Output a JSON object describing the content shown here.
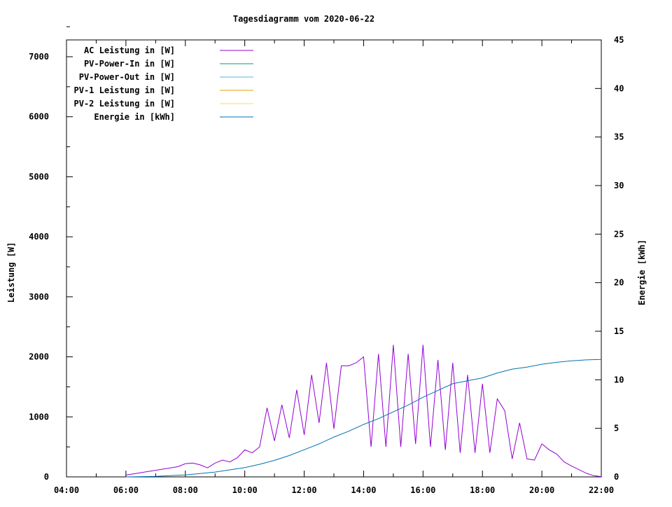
{
  "chart_data": {
    "type": "line",
    "title": "Tagesdiagramm vom 2020-06-22",
    "xlabel": "",
    "ylabel": "Leistung [W]",
    "y2label": "Energie [kWh]",
    "xlim": [
      "04:00",
      "22:00"
    ],
    "xticks": [
      "04:00",
      "06:00",
      "08:00",
      "10:00",
      "12:00",
      "14:00",
      "16:00",
      "18:00",
      "20:00",
      "22:00"
    ],
    "ylim": [
      0,
      7280
    ],
    "yticks": [
      0,
      1000,
      2000,
      3000,
      4000,
      5000,
      6000,
      7000
    ],
    "y2lim": [
      0,
      45
    ],
    "y2ticks": [
      0,
      5,
      10,
      15,
      20,
      25,
      30,
      35,
      40,
      45
    ],
    "grid": false,
    "legend_placement": "top-left",
    "series": [
      {
        "name": "AC Leistung in [W]",
        "color": "#9400d3",
        "axis": "y",
        "x": [
          "06:00",
          "06:15",
          "06:30",
          "06:45",
          "07:00",
          "07:15",
          "07:30",
          "07:45",
          "08:00",
          "08:15",
          "08:30",
          "08:45",
          "09:00",
          "09:15",
          "09:30",
          "09:45",
          "10:00",
          "10:15",
          "10:30",
          "10:45",
          "11:00",
          "11:15",
          "11:30",
          "11:45",
          "12:00",
          "12:15",
          "12:30",
          "12:45",
          "13:00",
          "13:15",
          "13:30",
          "13:45",
          "14:00",
          "14:15",
          "14:30",
          "14:45",
          "15:00",
          "15:15",
          "15:30",
          "15:45",
          "16:00",
          "16:15",
          "16:30",
          "16:45",
          "17:00",
          "17:15",
          "17:30",
          "17:45",
          "18:00",
          "18:15",
          "18:30",
          "18:45",
          "19:00",
          "19:15",
          "19:30",
          "19:45",
          "20:00",
          "20:15",
          "20:30",
          "20:45",
          "21:00",
          "21:15",
          "21:30",
          "21:45",
          "22:00"
        ],
        "values": [
          30,
          50,
          70,
          90,
          110,
          130,
          150,
          170,
          220,
          230,
          200,
          150,
          230,
          280,
          250,
          320,
          450,
          400,
          500,
          1150,
          600,
          1200,
          650,
          1450,
          700,
          1700,
          900,
          1900,
          800,
          1850,
          1850,
          1900,
          2000,
          500,
          2050,
          500,
          2200,
          500,
          2050,
          550,
          2200,
          500,
          1950,
          450,
          1900,
          400,
          1700,
          400,
          1550,
          400,
          1300,
          1100,
          300,
          900,
          300,
          280,
          550,
          450,
          380,
          250,
          180,
          120,
          60,
          20,
          5
        ]
      },
      {
        "name": "PV-Power-In in [W]",
        "color": "#009e73",
        "axis": "y",
        "x": [],
        "values": []
      },
      {
        "name": "PV-Power-Out in [W]",
        "color": "#56b4e9",
        "axis": "y",
        "x": [],
        "values": []
      },
      {
        "name": "PV-1 Leistung in [W]",
        "color": "#e69f00",
        "axis": "y",
        "x": [],
        "values": []
      },
      {
        "name": "PV-2 Leistung in [W]",
        "color": "#f0e442",
        "axis": "y",
        "x": [],
        "values": []
      },
      {
        "name": "Energie in [kWh]",
        "color": "#0072b2",
        "axis": "y2",
        "x": [
          "06:00",
          "07:00",
          "08:00",
          "09:00",
          "10:00",
          "10:30",
          "11:00",
          "11:30",
          "12:00",
          "12:30",
          "13:00",
          "13:30",
          "14:00",
          "14:30",
          "15:00",
          "15:30",
          "16:00",
          "16:30",
          "17:00",
          "17:30",
          "18:00",
          "18:30",
          "19:00",
          "19:30",
          "20:00",
          "20:30",
          "21:00",
          "21:30",
          "22:00"
        ],
        "values": [
          0,
          0.05,
          0.2,
          0.5,
          0.95,
          1.3,
          1.7,
          2.2,
          2.8,
          3.4,
          4.1,
          4.7,
          5.4,
          6.0,
          6.7,
          7.4,
          8.2,
          8.9,
          9.6,
          9.9,
          10.2,
          10.7,
          11.1,
          11.3,
          11.6,
          11.8,
          11.95,
          12.05,
          12.1
        ]
      }
    ]
  }
}
